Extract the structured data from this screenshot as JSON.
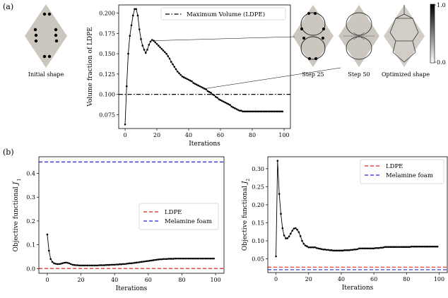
{
  "panels": {
    "a_label": "(a)",
    "b_label": "(b)",
    "captions": [
      "Initial shape",
      "Step 25",
      "Step 50",
      "Optimized shape"
    ],
    "colorbar": {
      "max_label": "1.0",
      "min_label": "0.0"
    }
  },
  "chart_data": [
    {
      "type": "line",
      "xlabel": "Iterations",
      "ylabel": "Volume fraction of LDPE",
      "xlim": [
        -4,
        104
      ],
      "ylim": [
        0.058,
        0.21
      ],
      "xticks": [
        "0",
        "20",
        "40",
        "60",
        "80",
        "100"
      ],
      "yticks": [
        "0.075",
        "0.100",
        "0.125",
        "0.150",
        "0.175",
        "0.200"
      ],
      "legend": {
        "location": "upper-right",
        "entries": [
          "Maximum Volume (LDPE)"
        ]
      },
      "series": [
        {
          "name": "",
          "color": "#000000",
          "marker": "dot",
          "x": [
            0,
            1,
            2,
            3,
            4,
            5,
            6,
            7,
            8,
            9,
            10,
            11,
            12,
            13,
            14,
            15,
            16,
            17,
            18,
            19,
            20,
            21,
            22,
            23,
            24,
            25,
            26,
            27,
            28,
            29,
            30,
            31,
            32,
            33,
            34,
            35,
            36,
            37,
            38,
            39,
            40,
            41,
            42,
            43,
            44,
            45,
            46,
            47,
            48,
            49,
            50,
            51,
            52,
            53,
            54,
            55,
            56,
            57,
            58,
            59,
            60,
            61,
            62,
            63,
            64,
            65,
            66,
            67,
            68,
            69,
            70,
            71,
            72,
            73,
            74,
            75,
            76,
            77,
            78,
            79,
            80,
            81,
            82,
            83,
            84,
            85,
            86,
            87,
            88,
            89,
            90,
            91,
            92,
            93,
            94,
            95,
            96,
            97,
            98,
            99
          ],
          "y": [
            0.063,
            0.11,
            0.15,
            0.172,
            0.185,
            0.197,
            0.205,
            0.205,
            0.197,
            0.18,
            0.168,
            0.16,
            0.155,
            0.151,
            0.155,
            0.161,
            0.165,
            0.167,
            0.166,
            0.164,
            0.162,
            0.16,
            0.158,
            0.156,
            0.154,
            0.152,
            0.15,
            0.147,
            0.144,
            0.14,
            0.137,
            0.134,
            0.131,
            0.128,
            0.126,
            0.124,
            0.122,
            0.121,
            0.12,
            0.119,
            0.118,
            0.117,
            0.116,
            0.114,
            0.113,
            0.112,
            0.111,
            0.11,
            0.109,
            0.108,
            0.107,
            0.106,
            0.104,
            0.103,
            0.102,
            0.1,
            0.099,
            0.097,
            0.096,
            0.094,
            0.093,
            0.092,
            0.091,
            0.09,
            0.089,
            0.088,
            0.087,
            0.085,
            0.084,
            0.083,
            0.082,
            0.081,
            0.08,
            0.08,
            0.079,
            0.079,
            0.079,
            0.079,
            0.079,
            0.079,
            0.079,
            0.079,
            0.079,
            0.079,
            0.079,
            0.079,
            0.079,
            0.079,
            0.079,
            0.079,
            0.079,
            0.079,
            0.079,
            0.079,
            0.079,
            0.079,
            0.079,
            0.079,
            0.079,
            0.079
          ]
        },
        {
          "name": "Maximum Volume (LDPE)",
          "color": "#000000",
          "dash": "dashdot",
          "constant": 0.1
        }
      ]
    },
    {
      "type": "line",
      "xlabel": "Iterations",
      "ylabel": "Objective functional J'_1",
      "ylabel_base": "Objective functional ",
      "ylabel_symbol": "J",
      "ylabel_prime": "′",
      "ylabel_sub": "1",
      "xlim": [
        -5,
        105
      ],
      "ylim": [
        -0.02,
        0.47
      ],
      "xticks": [
        "0",
        "20",
        "40",
        "60",
        "80",
        "100"
      ],
      "yticks": [
        "0.0",
        "0.1",
        "0.2",
        "0.3",
        "0.4"
      ],
      "legend": {
        "location": "center-right",
        "entries": [
          "LDPE",
          "Melamine foam"
        ]
      },
      "series": [
        {
          "name": "",
          "color": "#000000",
          "marker": "dot",
          "x": [
            0,
            1,
            2,
            3,
            4,
            5,
            6,
            7,
            8,
            9,
            10,
            11,
            12,
            13,
            14,
            15,
            16,
            17,
            18,
            19,
            20,
            21,
            22,
            23,
            24,
            25,
            26,
            27,
            28,
            29,
            30,
            31,
            32,
            33,
            34,
            35,
            36,
            37,
            38,
            39,
            40,
            41,
            42,
            43,
            44,
            45,
            46,
            47,
            48,
            49,
            50,
            51,
            52,
            53,
            54,
            55,
            56,
            57,
            58,
            59,
            60,
            61,
            62,
            63,
            64,
            65,
            66,
            67,
            68,
            69,
            70,
            71,
            72,
            73,
            74,
            75,
            76,
            77,
            78,
            79,
            80,
            81,
            82,
            83,
            84,
            85,
            86,
            87,
            88,
            89,
            90,
            91,
            92,
            93,
            94,
            95,
            96,
            97,
            98,
            99
          ],
          "y": [
            0.143,
            0.075,
            0.04,
            0.028,
            0.022,
            0.02,
            0.019,
            0.019,
            0.02,
            0.022,
            0.024,
            0.025,
            0.024,
            0.022,
            0.019,
            0.016,
            0.015,
            0.014,
            0.014,
            0.013,
            0.013,
            0.013,
            0.013,
            0.013,
            0.013,
            0.013,
            0.013,
            0.013,
            0.013,
            0.013,
            0.013,
            0.014,
            0.014,
            0.014,
            0.014,
            0.015,
            0.015,
            0.015,
            0.016,
            0.016,
            0.016,
            0.017,
            0.017,
            0.018,
            0.018,
            0.019,
            0.019,
            0.02,
            0.021,
            0.022,
            0.022,
            0.023,
            0.024,
            0.025,
            0.026,
            0.027,
            0.028,
            0.029,
            0.03,
            0.031,
            0.032,
            0.033,
            0.034,
            0.035,
            0.036,
            0.037,
            0.038,
            0.039,
            0.039,
            0.04,
            0.04,
            0.04,
            0.041,
            0.041,
            0.041,
            0.041,
            0.042,
            0.042,
            0.042,
            0.042,
            0.042,
            0.042,
            0.042,
            0.042,
            0.042,
            0.042,
            0.042,
            0.042,
            0.042,
            0.042,
            0.042,
            0.042,
            0.042,
            0.042,
            0.042,
            0.042,
            0.042,
            0.042,
            0.042,
            0.042
          ]
        },
        {
          "name": "LDPE",
          "color": "#e8211d",
          "dash": "dashed",
          "constant": 0.0
        },
        {
          "name": "Melamine foam",
          "color": "#2525d8",
          "dash": "dashed",
          "constant": 0.448
        }
      ]
    },
    {
      "type": "line",
      "xlabel": "Iterations",
      "ylabel": "Objective functional J_2",
      "ylabel_base": "Objective functional ",
      "ylabel_symbol": "J",
      "ylabel_prime": "",
      "ylabel_sub": "2",
      "xlim": [
        -5,
        105
      ],
      "ylim": [
        0.012,
        0.333
      ],
      "xticks": [
        "0",
        "20",
        "40",
        "60",
        "80",
        "100"
      ],
      "yticks": [
        "0.05",
        "0.10",
        "0.15",
        "0.20",
        "0.25",
        "0.30"
      ],
      "legend": {
        "location": "upper-right",
        "entries": [
          "LDPE",
          "Melamine foam"
        ]
      },
      "series": [
        {
          "name": "",
          "color": "#000000",
          "marker": "dot",
          "x": [
            0,
            1,
            2,
            3,
            4,
            5,
            6,
            7,
            8,
            9,
            10,
            11,
            12,
            13,
            14,
            15,
            16,
            17,
            18,
            19,
            20,
            21,
            22,
            23,
            24,
            25,
            26,
            27,
            28,
            29,
            30,
            31,
            32,
            33,
            34,
            35,
            36,
            37,
            38,
            39,
            40,
            41,
            42,
            43,
            44,
            45,
            46,
            47,
            48,
            49,
            50,
            51,
            52,
            53,
            54,
            55,
            56,
            57,
            58,
            59,
            60,
            61,
            62,
            63,
            64,
            65,
            66,
            67,
            68,
            69,
            70,
            71,
            72,
            73,
            74,
            75,
            76,
            77,
            78,
            79,
            80,
            81,
            82,
            83,
            84,
            85,
            86,
            87,
            88,
            89,
            90,
            91,
            92,
            93,
            94,
            95,
            96,
            97,
            98,
            99
          ],
          "y": [
            0.057,
            0.322,
            0.23,
            0.175,
            0.135,
            0.115,
            0.107,
            0.107,
            0.112,
            0.12,
            0.128,
            0.134,
            0.135,
            0.131,
            0.124,
            0.113,
            0.1,
            0.092,
            0.087,
            0.085,
            0.082,
            0.082,
            0.082,
            0.082,
            0.082,
            0.08,
            0.079,
            0.078,
            0.077,
            0.076,
            0.076,
            0.075,
            0.075,
            0.074,
            0.074,
            0.073,
            0.073,
            0.073,
            0.073,
            0.073,
            0.073,
            0.073,
            0.074,
            0.074,
            0.074,
            0.074,
            0.075,
            0.075,
            0.076,
            0.076,
            0.077,
            0.079,
            0.079,
            0.079,
            0.079,
            0.079,
            0.079,
            0.079,
            0.079,
            0.079,
            0.079,
            0.08,
            0.08,
            0.08,
            0.081,
            0.081,
            0.082,
            0.083,
            0.083,
            0.083,
            0.083,
            0.083,
            0.083,
            0.083,
            0.083,
            0.083,
            0.083,
            0.083,
            0.083,
            0.083,
            0.083,
            0.083,
            0.083,
            0.084,
            0.084,
            0.084,
            0.084,
            0.084,
            0.084,
            0.084,
            0.084,
            0.084,
            0.084,
            0.084,
            0.084,
            0.084,
            0.084,
            0.084,
            0.084,
            0.084
          ]
        },
        {
          "name": "LDPE",
          "color": "#e8211d",
          "dash": "dashed",
          "constant": 0.027
        },
        {
          "name": "Melamine foam",
          "color": "#2525d8",
          "dash": "dashed",
          "constant": 0.02
        }
      ]
    }
  ]
}
